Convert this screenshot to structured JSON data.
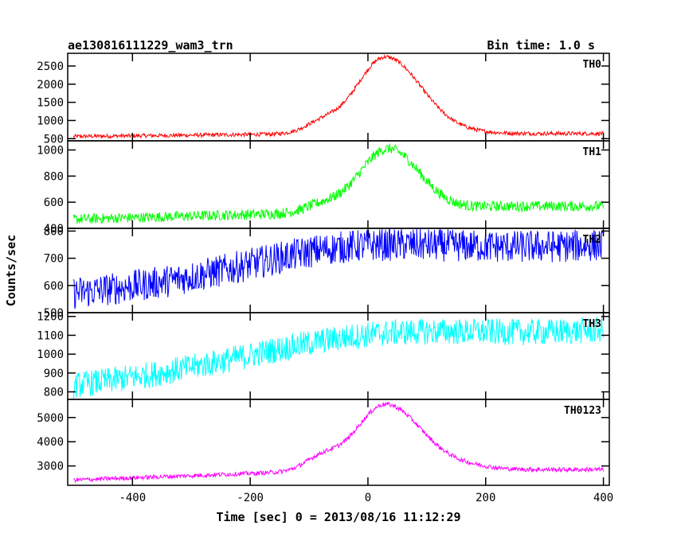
{
  "chart_data": {
    "type": "line",
    "title_left": "ae130816111229_wam3_trn",
    "title_right": "Bin time: 1.0 s",
    "xlabel": "Time [sec] 0 = 2013/08/16 11:12:29",
    "ylabel": "Counts/sec",
    "xlim": [
      -510,
      410
    ],
    "x_ticks": [
      -400,
      -200,
      0,
      200,
      400
    ],
    "series": [
      {
        "name": "TH0",
        "color": "#ff0000",
        "ylim": [
          440,
          2850
        ],
        "y_ticks": [
          500,
          1000,
          1500,
          2000,
          2500
        ],
        "baseline": 560,
        "slope": 0.18,
        "noise": 55,
        "peak": 2750,
        "peak_x": 30,
        "rise_width": 70,
        "fall_width": 85,
        "shoulder": 260,
        "tail": 640
      },
      {
        "name": "TH1",
        "color": "#00ff00",
        "ylim": [
          400,
          1070
        ],
        "y_ticks": [
          400,
          600,
          800,
          1000
        ],
        "baseline": 470,
        "slope": 0.12,
        "noise": 40,
        "peak": 1010,
        "peak_x": 35,
        "rise_width": 70,
        "fall_width": 75,
        "shoulder": 50,
        "tail": 570
      },
      {
        "name": "TH2",
        "color": "#0000ff",
        "ylim": [
          500,
          810
        ],
        "y_ticks": [
          500,
          600,
          700,
          800
        ],
        "baseline": 570,
        "slope": 0.2,
        "noise": 60,
        "peak": 750,
        "peak_x": 40,
        "rise_width": 250,
        "fall_width": 400,
        "shoulder": 0,
        "tail": 705
      },
      {
        "name": "TH3",
        "color": "#00ffff",
        "ylim": [
          760,
          1220
        ],
        "y_ticks": [
          800,
          900,
          1000,
          1100,
          1200
        ],
        "baseline": 830,
        "slope": 0.35,
        "noise": 70,
        "peak": 1120,
        "peak_x": 120,
        "rise_width": 300,
        "fall_width": 400,
        "shoulder": 0,
        "tail": 1040
      },
      {
        "name": "TH0123",
        "color": "#ff00ff",
        "ylim": [
          2200,
          5750
        ],
        "y_ticks": [
          3000,
          4000,
          5000
        ],
        "baseline": 2420,
        "slope": 0.9,
        "noise": 90,
        "peak": 5550,
        "peak_x": 30,
        "rise_width": 70,
        "fall_width": 85,
        "shoulder": 500,
        "tail": 2850
      }
    ]
  }
}
